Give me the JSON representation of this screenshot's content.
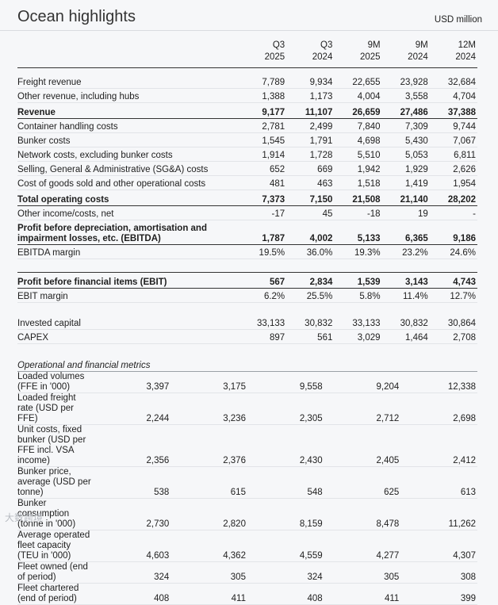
{
  "header": {
    "title": "Ocean highlights",
    "unit": "USD million"
  },
  "table": {
    "columns": [
      {
        "period": "Q3",
        "year": "2025"
      },
      {
        "period": "Q3",
        "year": "2024"
      },
      {
        "period": "9M",
        "year": "2025"
      },
      {
        "period": "9M",
        "year": "2024"
      },
      {
        "period": "12M",
        "year": "2024"
      }
    ],
    "sections": [
      {
        "rows": [
          {
            "label": "Freight revenue",
            "values": [
              "7,789",
              "9,934",
              "22,655",
              "23,928",
              "32,684"
            ]
          },
          {
            "label": "Other revenue, including hubs",
            "values": [
              "1,388",
              "1,173",
              "4,004",
              "3,558",
              "4,704"
            ]
          },
          {
            "label": "Revenue",
            "values": [
              "9,177",
              "11,107",
              "26,659",
              "27,486",
              "37,388"
            ],
            "bold": true
          },
          {
            "label": "Container handling costs",
            "values": [
              "2,781",
              "2,499",
              "7,840",
              "7,309",
              "9,744"
            ]
          },
          {
            "label": "Bunker costs",
            "values": [
              "1,545",
              "1,791",
              "4,698",
              "5,430",
              "7,067"
            ]
          },
          {
            "label": "Network costs, excluding bunker costs",
            "values": [
              "1,914",
              "1,728",
              "5,510",
              "5,053",
              "6,811"
            ]
          },
          {
            "label": "Selling, General & Administrative (SG&A) costs",
            "values": [
              "652",
              "669",
              "1,942",
              "1,929",
              "2,626"
            ]
          },
          {
            "label": "Cost of goods sold and other operational costs",
            "values": [
              "481",
              "463",
              "1,518",
              "1,419",
              "1,954"
            ]
          },
          {
            "label": "Total operating costs",
            "values": [
              "7,373",
              "7,150",
              "21,508",
              "21,140",
              "28,202"
            ],
            "bold": true
          },
          {
            "label": "Other income/costs, net",
            "values": [
              "-17",
              "45",
              "-18",
              "19",
              "-"
            ]
          },
          {
            "label": "Profit before depreciation, amortisation and impairment losses, etc. (EBITDA)",
            "values": [
              "1,787",
              "4,002",
              "5,133",
              "6,365",
              "9,186"
            ],
            "bold": true
          },
          {
            "label": "EBITDA margin",
            "values": [
              "19.5%",
              "36.0%",
              "19.3%",
              "23.2%",
              "24.6%"
            ]
          }
        ]
      },
      {
        "rows": [
          {
            "label": "Profit before financial items (EBIT)",
            "values": [
              "567",
              "2,834",
              "1,539",
              "3,143",
              "4,743"
            ],
            "bold": true
          },
          {
            "label": "EBIT margin",
            "values": [
              "6.2%",
              "25.5%",
              "5.8%",
              "11.4%",
              "12.7%"
            ]
          }
        ]
      },
      {
        "rows": [
          {
            "label": "Invested capital",
            "values": [
              "33,133",
              "30,832",
              "33,133",
              "30,832",
              "30,864"
            ]
          },
          {
            "label": "CAPEX",
            "values": [
              "897",
              "561",
              "3,029",
              "1,464",
              "2,708"
            ]
          }
        ]
      },
      {
        "title": "Operational and financial metrics",
        "rows": [
          {
            "label": "Loaded volumes (FFE in '000)",
            "values": [
              "3,397",
              "3,175",
              "9,558",
              "9,204",
              "12,338"
            ]
          },
          {
            "label": "Loaded freight rate (USD per FFE)",
            "values": [
              "2,244",
              "3,236",
              "2,305",
              "2,712",
              "2,698"
            ]
          },
          {
            "label": "Unit costs, fixed bunker (USD per FFE incl. VSA income)",
            "values": [
              "2,356",
              "2,376",
              "2,430",
              "2,405",
              "2,412"
            ]
          },
          {
            "label": "Bunker price, average (USD per tonne)",
            "values": [
              "538",
              "615",
              "548",
              "625",
              "613"
            ]
          },
          {
            "label": "Bunker consumption (tonne in '000)",
            "values": [
              "2,730",
              "2,820",
              "8,159",
              "8,478",
              "11,262"
            ]
          },
          {
            "label": "Average operated fleet capacity (TEU in '000)",
            "values": [
              "4,603",
              "4,362",
              "4,559",
              "4,277",
              "4,307"
            ]
          },
          {
            "label": "Fleet owned (end of period)",
            "values": [
              "324",
              "305",
              "324",
              "305",
              "308"
            ]
          },
          {
            "label": "Fleet chartered (end of period)",
            "values": [
              "408",
              "411",
              "408",
              "411",
              "399"
            ]
          }
        ]
      }
    ]
  },
  "watermark": "大数跨境"
}
